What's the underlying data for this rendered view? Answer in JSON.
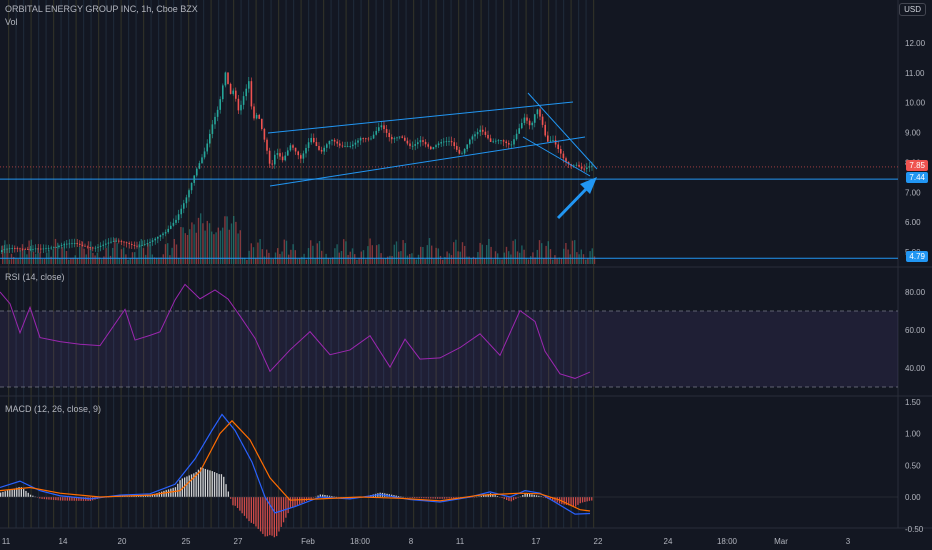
{
  "header": {
    "title": "ORBITAL ENERGY GROUP INC, 1h, Cboe BZX",
    "vol_label": "Vol",
    "currency": "USD"
  },
  "price_axis": [
    "12.00",
    "11.00",
    "10.00",
    "9.00",
    "8.00",
    "7.00",
    "6.00",
    "5.00"
  ],
  "price_badges": {
    "last": "7.85",
    "line": "7.44",
    "low": "4.79"
  },
  "rsi": {
    "label": "RSI (14, close)",
    "ticks": [
      "80.00",
      "60.00",
      "40.00"
    ]
  },
  "macd": {
    "label": "MACD (12, 26, close, 9)",
    "ticks": [
      "1.50",
      "1.00",
      "0.50",
      "0.00",
      "-0.50"
    ]
  },
  "time_axis": [
    "11",
    "14",
    "20",
    "25",
    "27",
    "Feb",
    "18:00",
    "8",
    "11",
    "17",
    "22",
    "24",
    "18:00",
    "Mar",
    "3"
  ],
  "colors": {
    "up": "#26a69a",
    "down": "#ef5350",
    "trendline": "#2196f3",
    "rsi": "#9c27b0",
    "macd": "#2962ff",
    "signal": "#ff6d00"
  },
  "chart_data": [
    {
      "type": "candlestick",
      "title": "ORBITAL ENERGY GROUP INC, 1h, Cboe BZX",
      "x_ticks": [
        "11",
        "14",
        "20",
        "25",
        "27",
        "Feb",
        "18:00",
        "8",
        "11",
        "17",
        "22",
        "24",
        "18:00",
        "Mar",
        "3"
      ],
      "ylim": [
        4.5,
        12.5
      ],
      "y_ticks": [
        12,
        11,
        10,
        9,
        8,
        7,
        6,
        5
      ],
      "close_path": [
        [
          0,
          5.0
        ],
        [
          20,
          5.1
        ],
        [
          35,
          5.2
        ],
        [
          55,
          5.1
        ],
        [
          75,
          5.3
        ],
        [
          95,
          5.2
        ],
        [
          115,
          5.3
        ],
        [
          135,
          5.25
        ],
        [
          150,
          5.4
        ],
        [
          165,
          5.6
        ],
        [
          175,
          6.0
        ],
        [
          185,
          6.8
        ],
        [
          195,
          7.8
        ],
        [
          205,
          8.5
        ],
        [
          212,
          9.3
        ],
        [
          218,
          9.8
        ],
        [
          222,
          10.5
        ],
        [
          225,
          11.0
        ],
        [
          229,
          10.2
        ],
        [
          233,
          10.4
        ],
        [
          238,
          9.7
        ],
        [
          243,
          10.3
        ],
        [
          248,
          10.8
        ],
        [
          252,
          9.5
        ],
        [
          257,
          9.7
        ],
        [
          262,
          9.0
        ],
        [
          266,
          8.4
        ],
        [
          270,
          7.7
        ],
        [
          275,
          8.3
        ],
        [
          282,
          8.0
        ],
        [
          290,
          8.6
        ],
        [
          300,
          8.2
        ],
        [
          310,
          8.9
        ],
        [
          320,
          8.3
        ],
        [
          330,
          8.7
        ],
        [
          340,
          8.5
        ],
        [
          350,
          8.6
        ],
        [
          360,
          8.9
        ],
        [
          370,
          8.8
        ],
        [
          380,
          9.2
        ],
        [
          390,
          8.7
        ],
        [
          400,
          8.9
        ],
        [
          410,
          8.6
        ],
        [
          420,
          8.8
        ],
        [
          430,
          8.4
        ],
        [
          440,
          8.6
        ],
        [
          450,
          8.7
        ],
        [
          460,
          8.3
        ],
        [
          470,
          8.9
        ],
        [
          480,
          9.1
        ],
        [
          490,
          8.6
        ],
        [
          500,
          8.7
        ],
        [
          510,
          8.6
        ],
        [
          518,
          9.2
        ],
        [
          524,
          9.6
        ],
        [
          530,
          9.2
        ],
        [
          536,
          9.8
        ],
        [
          541,
          9.3
        ],
        [
          546,
          8.6
        ],
        [
          552,
          8.7
        ],
        [
          558,
          8.4
        ],
        [
          564,
          8.1
        ],
        [
          570,
          7.95
        ],
        [
          576,
          8.0
        ],
        [
          582,
          7.8
        ],
        [
          588,
          7.85
        ]
      ],
      "levels": [
        7.44,
        4.79,
        7.85
      ]
    },
    {
      "type": "line",
      "title": "RSI (14, close)",
      "bands": [
        70,
        30
      ],
      "ylim": [
        20,
        90
      ],
      "values": [
        [
          0,
          80
        ],
        [
          10,
          73
        ],
        [
          20,
          60
        ],
        [
          30,
          70
        ],
        [
          40,
          58
        ],
        [
          60,
          55
        ],
        [
          80,
          52
        ],
        [
          100,
          50
        ],
        [
          125,
          72
        ],
        [
          135,
          53
        ],
        [
          150,
          57
        ],
        [
          160,
          60
        ],
        [
          175,
          75
        ],
        [
          185,
          84
        ],
        [
          200,
          78
        ],
        [
          215,
          83
        ],
        [
          228,
          78
        ],
        [
          240,
          66
        ],
        [
          255,
          56
        ],
        [
          270,
          40
        ],
        [
          290,
          50
        ],
        [
          310,
          58
        ],
        [
          330,
          45
        ],
        [
          350,
          48
        ],
        [
          370,
          57
        ],
        [
          390,
          42
        ],
        [
          405,
          55
        ],
        [
          420,
          43
        ],
        [
          440,
          45
        ],
        [
          460,
          52
        ],
        [
          480,
          60
        ],
        [
          500,
          48
        ],
        [
          520,
          70
        ],
        [
          535,
          66
        ],
        [
          545,
          48
        ],
        [
          560,
          35
        ],
        [
          575,
          33
        ],
        [
          590,
          38
        ]
      ]
    },
    {
      "type": "line",
      "title": "MACD (12, 26, close, 9)",
      "ylim": [
        -0.6,
        1.5
      ],
      "series": [
        {
          "name": "MACD",
          "values": [
            [
              0,
              0.15
            ],
            [
              20,
              0.25
            ],
            [
              40,
              0.1
            ],
            [
              60,
              0.02
            ],
            [
              90,
              -0.03
            ],
            [
              120,
              0.03
            ],
            [
              150,
              0.05
            ],
            [
              175,
              0.2
            ],
            [
              195,
              0.6
            ],
            [
              212,
              1.05
            ],
            [
              222,
              1.3
            ],
            [
              235,
              1.05
            ],
            [
              252,
              0.55
            ],
            [
              265,
              0.0
            ],
            [
              275,
              -0.25
            ],
            [
              295,
              -0.15
            ],
            [
              320,
              0.0
            ],
            [
              350,
              -0.03
            ],
            [
              380,
              0.04
            ],
            [
              410,
              -0.04
            ],
            [
              440,
              -0.08
            ],
            [
              470,
              0.0
            ],
            [
              490,
              0.08
            ],
            [
              510,
              0.0
            ],
            [
              525,
              0.1
            ],
            [
              540,
              0.06
            ],
            [
              555,
              -0.08
            ],
            [
              575,
              -0.27
            ],
            [
              590,
              -0.26
            ]
          ]
        },
        {
          "name": "Signal",
          "values": [
            [
              0,
              0.1
            ],
            [
              30,
              0.15
            ],
            [
              60,
              0.06
            ],
            [
              100,
              0.0
            ],
            [
              150,
              0.03
            ],
            [
              180,
              0.1
            ],
            [
              200,
              0.4
            ],
            [
              220,
              1.0
            ],
            [
              232,
              1.2
            ],
            [
              250,
              0.9
            ],
            [
              270,
              0.3
            ],
            [
              290,
              -0.05
            ],
            [
              320,
              -0.03
            ],
            [
              360,
              0.0
            ],
            [
              400,
              -0.02
            ],
            [
              440,
              -0.06
            ],
            [
              480,
              0.03
            ],
            [
              520,
              0.06
            ],
            [
              540,
              0.05
            ],
            [
              560,
              -0.05
            ],
            [
              580,
              -0.2
            ],
            [
              590,
              -0.22
            ]
          ]
        }
      ]
    }
  ]
}
